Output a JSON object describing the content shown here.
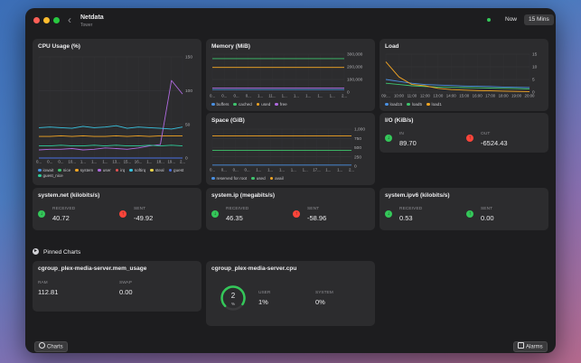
{
  "window": {
    "title": "Netdata",
    "subtitle": "Tower",
    "range_options": [
      "Now",
      "15 Mins"
    ],
    "selected_range": "15 Mins"
  },
  "cpu": {
    "title": "CPU Usage (%)",
    "chart_data": {
      "type": "line",
      "title": "CPU Usage (%)",
      "ylim": [
        0,
        150
      ],
      "y_ticks": [
        150,
        100,
        50,
        0
      ],
      "x_tick_labels": [
        "0...",
        "0...",
        "0...",
        "10...",
        "1...",
        "1...",
        "1...",
        "13...",
        "15...",
        "16...",
        "1...",
        "18...",
        "19...",
        "2..."
      ],
      "series": [
        {
          "name": "iowait",
          "color": "#4a90e2",
          "values": [
            0,
            0,
            0,
            0,
            0,
            0,
            0,
            0,
            0,
            0,
            0,
            0,
            0,
            0
          ]
        },
        {
          "name": "nice",
          "color": "#3ec46d",
          "values": [
            0,
            0,
            0,
            0,
            0,
            0,
            0,
            0,
            0,
            0,
            0,
            0,
            0,
            0
          ]
        },
        {
          "name": "system",
          "color": "#f5a623",
          "values": [
            32,
            32,
            33,
            32,
            33,
            32,
            32,
            33,
            32,
            33,
            32,
            33,
            33,
            33
          ]
        },
        {
          "name": "user",
          "color": "#b06ae0",
          "values": [
            12,
            13,
            13,
            14,
            12,
            13,
            15,
            14,
            13,
            15,
            18,
            20,
            115,
            95
          ]
        },
        {
          "name": "irq",
          "color": "#e55353",
          "values": [
            0,
            0,
            0,
            0,
            0,
            0,
            0,
            0,
            0,
            0,
            0,
            0,
            0,
            0
          ]
        },
        {
          "name": "softirq",
          "color": "#38c3e0",
          "values": [
            45,
            46,
            45,
            44,
            47,
            45,
            46,
            48,
            44,
            46,
            45,
            44,
            43,
            46
          ]
        },
        {
          "name": "steal",
          "color": "#e8d34a",
          "values": [
            0,
            0,
            0,
            0,
            0,
            0,
            0,
            0,
            0,
            0,
            0,
            0,
            0,
            0
          ]
        },
        {
          "name": "guest",
          "color": "#4a6fe2",
          "values": [
            0,
            0,
            0,
            0,
            0,
            0,
            0,
            0,
            0,
            0,
            0,
            0,
            0,
            0
          ]
        },
        {
          "name": "guest_nice",
          "color": "#2ecc9a",
          "values": [
            18,
            18,
            19,
            18,
            18,
            19,
            18,
            19,
            18,
            18,
            19,
            18,
            19,
            18
          ]
        }
      ]
    }
  },
  "memory": {
    "title": "Memory (MiB)",
    "chart_data": {
      "type": "line",
      "title": "Memory (MiB)",
      "ylim": [
        0,
        300000
      ],
      "y_ticks": [
        "300,000",
        "200,000",
        "100,000",
        "0"
      ],
      "x_tick_labels": [
        "0...",
        "0...",
        "0...",
        "0...",
        "1...",
        "11...",
        "1...",
        "1...",
        "1...",
        "1...",
        "1...",
        "2..."
      ],
      "series": [
        {
          "name": "buffers",
          "color": "#4a90e2",
          "values": [
            20000,
            20000,
            20000,
            20000,
            20000,
            20000,
            20000,
            20000,
            20000,
            20000,
            20000,
            20000
          ]
        },
        {
          "name": "cached",
          "color": "#3ec46d",
          "values": [
            265000,
            265000,
            265000,
            265000,
            265000,
            265000,
            265000,
            265000,
            265000,
            265000,
            265000,
            265000
          ]
        },
        {
          "name": "used",
          "color": "#f5a623",
          "values": [
            195000,
            195000,
            195000,
            195000,
            195000,
            195000,
            195000,
            195000,
            195000,
            195000,
            195000,
            195000
          ]
        },
        {
          "name": "free",
          "color": "#b06ae0",
          "values": [
            33000,
            33000,
            33000,
            33000,
            33000,
            33000,
            33000,
            33000,
            33000,
            33000,
            33000,
            33000
          ]
        }
      ]
    }
  },
  "load": {
    "title": "Load",
    "chart_data": {
      "type": "line",
      "title": "Load",
      "ylim": [
        0,
        15
      ],
      "y_ticks": [
        15,
        10,
        5,
        0
      ],
      "x_tick_labels": [
        "09:...",
        "10:00",
        "11:00",
        "12:00",
        "13:00",
        "14:00",
        "15:00",
        "16:00",
        "17:00",
        "18:00",
        "19:00",
        "20:00"
      ],
      "series": [
        {
          "name": "load15",
          "color": "#4a90e2",
          "values": [
            5,
            4.2,
            3.5,
            3,
            2.8,
            2.6,
            2.4,
            2.3,
            2.2,
            2,
            1.9,
            1.8
          ]
        },
        {
          "name": "load5",
          "color": "#3ec46d",
          "values": [
            3.5,
            3,
            2.5,
            2.2,
            2,
            1.9,
            1.8,
            1.7,
            1.6,
            1.5,
            1.4,
            1.2
          ]
        },
        {
          "name": "load1",
          "color": "#f5a623",
          "values": [
            12,
            6,
            3,
            2.5,
            1.5,
            1,
            0.8,
            0.6,
            0.5,
            0.4,
            0.3,
            0.2
          ]
        }
      ]
    }
  },
  "space": {
    "title": "Space (GiB)",
    "chart_data": {
      "type": "line",
      "title": "Space (GiB)",
      "ylim": [
        0,
        1000
      ],
      "y_ticks": [
        "1,000",
        "750",
        "500",
        "250",
        "0"
      ],
      "x_tick_labels": [
        "0...",
        "0...",
        "0...",
        "0...",
        "1...",
        "1...",
        "1...",
        "1...",
        "1...",
        "17...",
        "1...",
        "1...",
        "2..."
      ],
      "series": [
        {
          "name": "reserved for root",
          "color": "#4a90e2",
          "values": [
            30,
            30,
            30,
            30,
            30,
            30,
            30,
            30,
            30,
            30,
            30,
            30,
            30
          ]
        },
        {
          "name": "used",
          "color": "#3ec46d",
          "values": [
            430,
            430,
            430,
            430,
            430,
            430,
            430,
            430,
            430,
            430,
            430,
            430,
            430
          ]
        },
        {
          "name": "avail",
          "color": "#f5a623",
          "values": [
            820,
            820,
            820,
            820,
            820,
            820,
            820,
            820,
            820,
            820,
            820,
            820,
            820
          ]
        }
      ]
    }
  },
  "io": {
    "title": "I/O (KiB/s)",
    "in_label": "IN",
    "in_value": "89.70",
    "out_label": "OUT",
    "out_value": "-6524.43"
  },
  "net": {
    "title": "system.net (kilobits/s)",
    "received_label": "RECEIVED",
    "received_value": "40.72",
    "sent_label": "SENT",
    "sent_value": "-49.92"
  },
  "ip": {
    "title": "system.ip (megabits/s)",
    "received_label": "RECEIVED",
    "received_value": "46.35",
    "sent_label": "SENT",
    "sent_value": "-58.96"
  },
  "ipv6": {
    "title": "system.ipv6 (kilobits/s)",
    "received_label": "RECEIVED",
    "received_value": "0.53",
    "sent_label": "SENT",
    "sent_value": "0.00"
  },
  "pinned": {
    "section_title": "Pinned Charts",
    "mem_card": {
      "title": "cgroup_plex-media-server.mem_usage",
      "ram_label": "RAM",
      "ram_value": "112.81",
      "swap_label": "SWAP",
      "swap_value": "0.00"
    },
    "cpu_card": {
      "title": "cgroup_plex-media-server.cpu",
      "gauge_value": "2",
      "gauge_unit": "%",
      "gauge_fraction": 0.02,
      "user_label": "USER",
      "user_value": "1%",
      "system_label": "SYSTEM",
      "system_value": "0%"
    }
  },
  "footer": {
    "charts_button": "Charts",
    "alarms_button": "Alarms"
  },
  "colors": {
    "green": "#34c759",
    "red": "#ff453a",
    "close": "#ff5f57",
    "minimize": "#febc2e",
    "zoom": "#28c840"
  }
}
